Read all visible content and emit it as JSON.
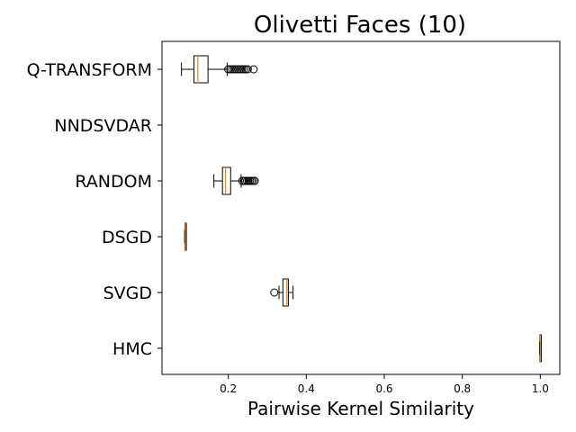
{
  "chart_data": {
    "type": "boxplot",
    "title": "Olivetti Faces (10)",
    "xlabel": "Pairwise Kernel Similarity",
    "ylabel": "",
    "xlim": [
      0.03,
      1.05
    ],
    "xticks": [
      0.2,
      0.4,
      0.6,
      0.8,
      1.0
    ],
    "xtick_labels": [
      "0.2",
      "0.4",
      "0.6",
      "0.8",
      "1.0"
    ],
    "grid": false,
    "colors": {
      "box": "#000000",
      "median": "#ff7f0e",
      "flier": "#000000"
    },
    "categories": [
      "Q-TRANSFORM",
      "NNDSVDAR",
      "RANDOM",
      "DSGD",
      "SVGD",
      "HMC"
    ],
    "boxes": [
      {
        "label": "Q-TRANSFORM",
        "whisker_low": 0.08,
        "q1": 0.112,
        "median": 0.122,
        "q3": 0.148,
        "whisker_high": 0.197,
        "fliers": [
          0.2,
          0.205,
          0.21,
          0.215,
          0.22,
          0.225,
          0.23,
          0.235,
          0.24,
          0.245,
          0.25,
          0.265
        ]
      },
      {
        "label": "NNDSVDAR",
        "empty": true
      },
      {
        "label": "RANDOM",
        "whisker_low": 0.163,
        "q1": 0.185,
        "median": 0.193,
        "q3": 0.206,
        "whisker_high": 0.233,
        "fliers": [
          0.236,
          0.24,
          0.244,
          0.248,
          0.252,
          0.256,
          0.26,
          0.264,
          0.268
        ]
      },
      {
        "label": "DSGD",
        "whisker_low": 0.088,
        "q1": 0.089,
        "median": 0.09,
        "q3": 0.091,
        "whisker_high": 0.092,
        "fliers": []
      },
      {
        "label": "SVGD",
        "whisker_low": 0.33,
        "q1": 0.34,
        "median": 0.35,
        "q3": 0.354,
        "whisker_high": 0.366,
        "fliers": [
          0.318
        ]
      },
      {
        "label": "HMC",
        "whisker_low": 0.998,
        "q1": 0.999,
        "median": 1.0,
        "q3": 1.0,
        "whisker_high": 1.001,
        "fliers": []
      }
    ]
  }
}
